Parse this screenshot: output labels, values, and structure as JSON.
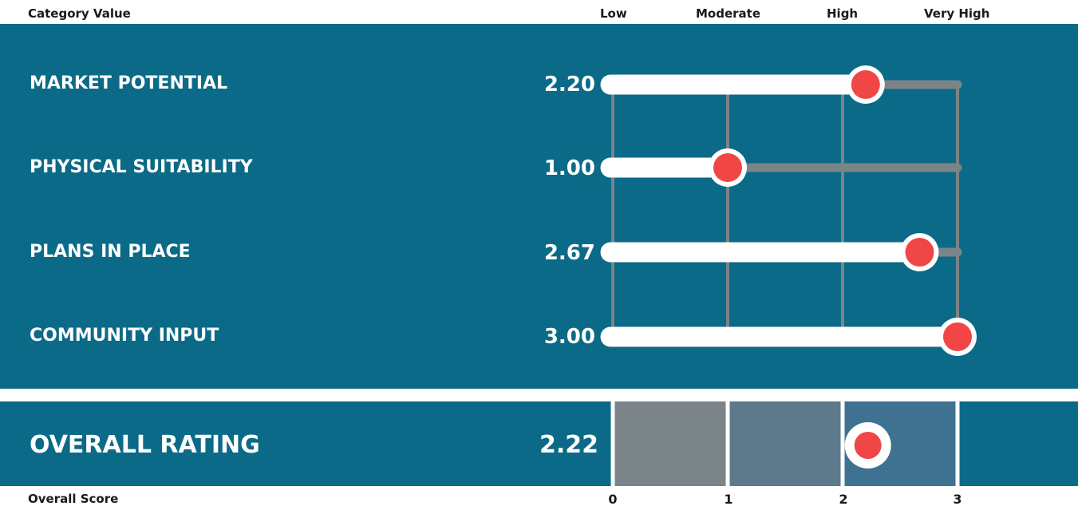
{
  "header": {
    "category_label": "Category Value",
    "levels": [
      "Low",
      "Moderate",
      "High",
      "Very High"
    ]
  },
  "footer": {
    "score_label": "Overall Score",
    "ticks": [
      "0",
      "1",
      "2",
      "3"
    ]
  },
  "overall": {
    "label": "OVERALL RATING",
    "value_text": "2.22",
    "value": 2.22
  },
  "colors": {
    "panel": "#0b6a87",
    "marker": "#f04646",
    "track": "#7b8486",
    "bar": "#ffffff",
    "band_low": "#7b8589",
    "band_moderate": "#5c7a8b",
    "band_high": "#3f7291"
  },
  "chart_data": {
    "type": "bar",
    "categories": [
      "MARKET POTENTIAL",
      "PHYSICAL SUITABILITY",
      "PLANS IN PLACE",
      "COMMUNITY INPUT"
    ],
    "values": [
      2.2,
      1.0,
      2.67,
      3.0
    ],
    "value_labels": [
      "2.20",
      "1.00",
      "2.67",
      "3.00"
    ],
    "xlim": [
      0,
      3
    ],
    "xticks": [
      0,
      1,
      2,
      3
    ],
    "grid": true,
    "overall_score": 2.22
  }
}
